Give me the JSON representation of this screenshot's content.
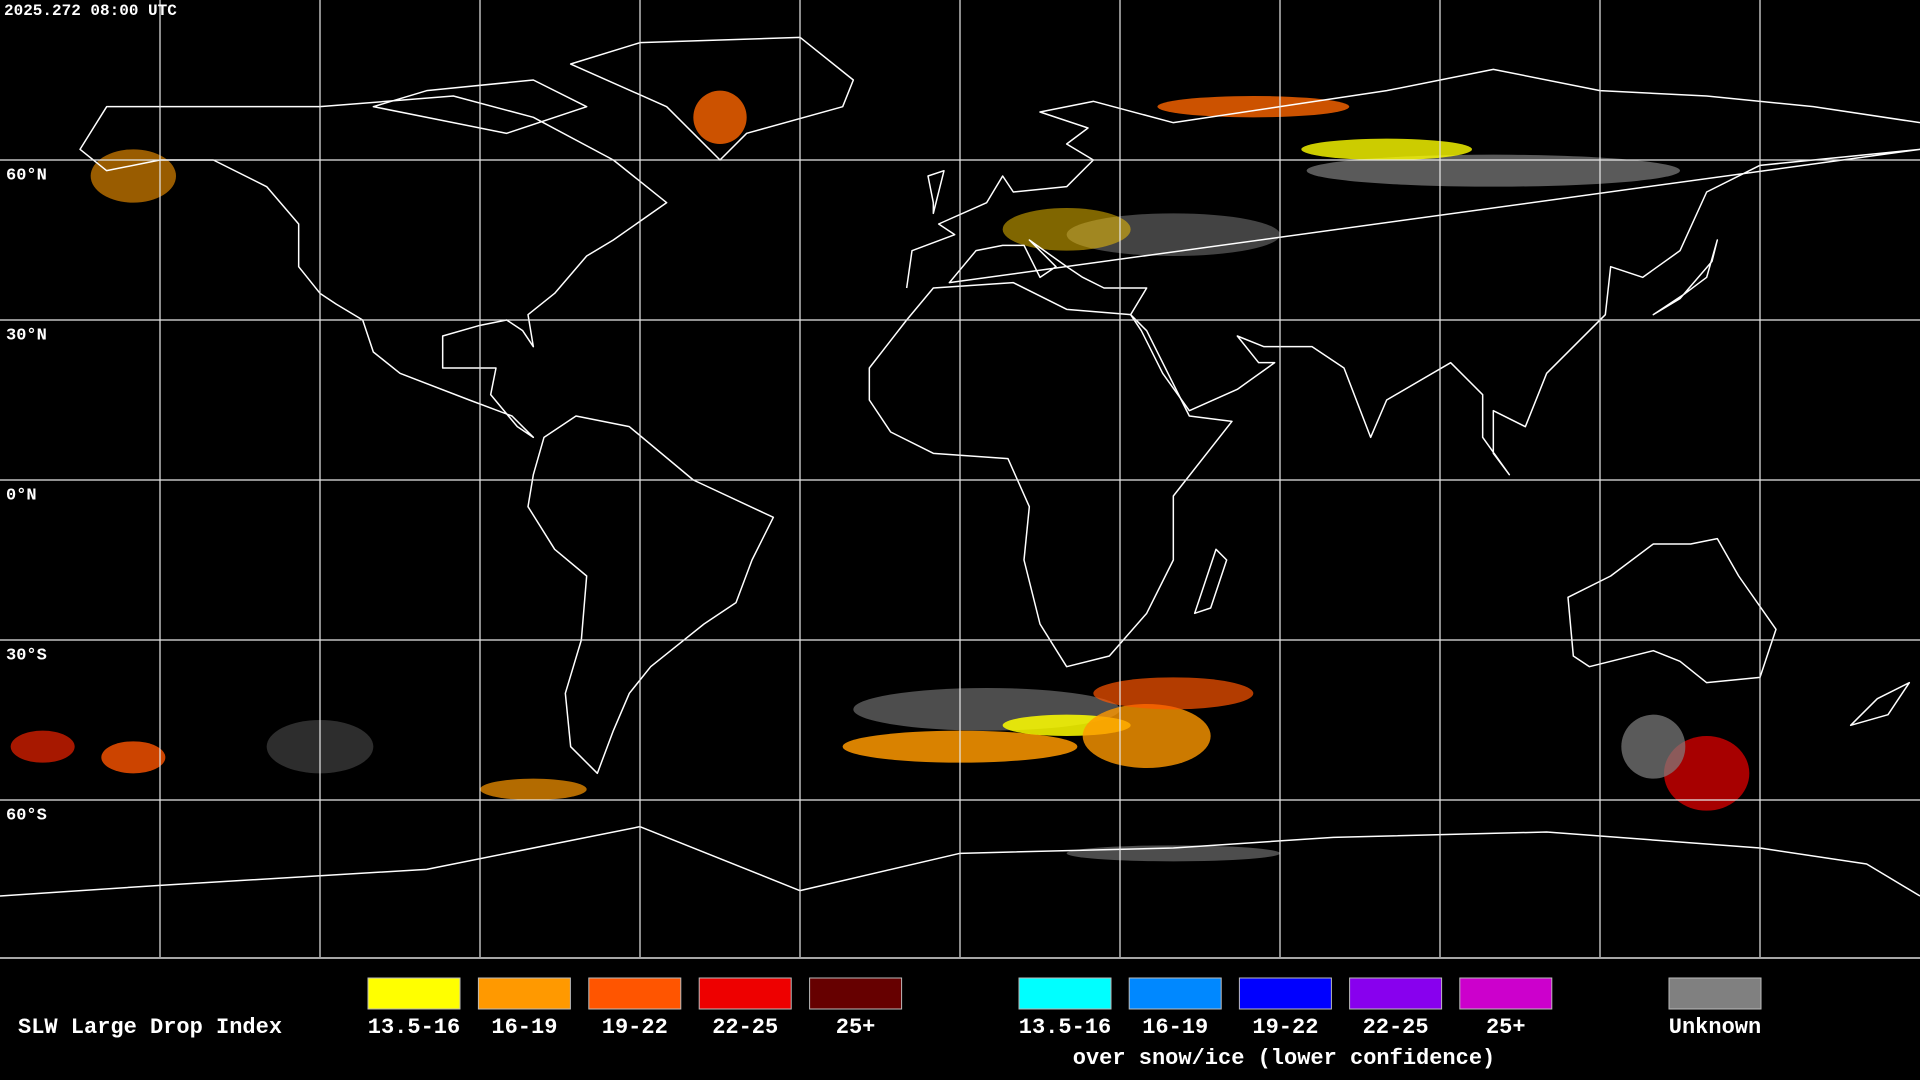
{
  "header": {
    "timestamp": "2025.272 08:00 UTC"
  },
  "map": {
    "lat_labels": [
      "60°N",
      "30°N",
      "0°N",
      "30°S",
      "60°S"
    ]
  },
  "legend": {
    "title": "SLW Large Drop Index",
    "standard": [
      {
        "label": "13.5-16",
        "color": "#ffff00"
      },
      {
        "label": "16-19",
        "color": "#ff9900"
      },
      {
        "label": "19-22",
        "color": "#ff5500"
      },
      {
        "label": "22-25",
        "color": "#ee0000"
      },
      {
        "label": "25+",
        "color": "#660000"
      }
    ],
    "snow_ice": [
      {
        "label": "13.5-16",
        "color": "#00ffff"
      },
      {
        "label": "16-19",
        "color": "#0088ff"
      },
      {
        "label": "19-22",
        "color": "#0000ff"
      },
      {
        "label": "22-25",
        "color": "#8800ee"
      },
      {
        "label": "25+",
        "color": "#cc00cc"
      }
    ],
    "snow_ice_caption": "over snow/ice (lower confidence)",
    "unknown": {
      "label": "Unknown",
      "color": "#808080"
    }
  }
}
